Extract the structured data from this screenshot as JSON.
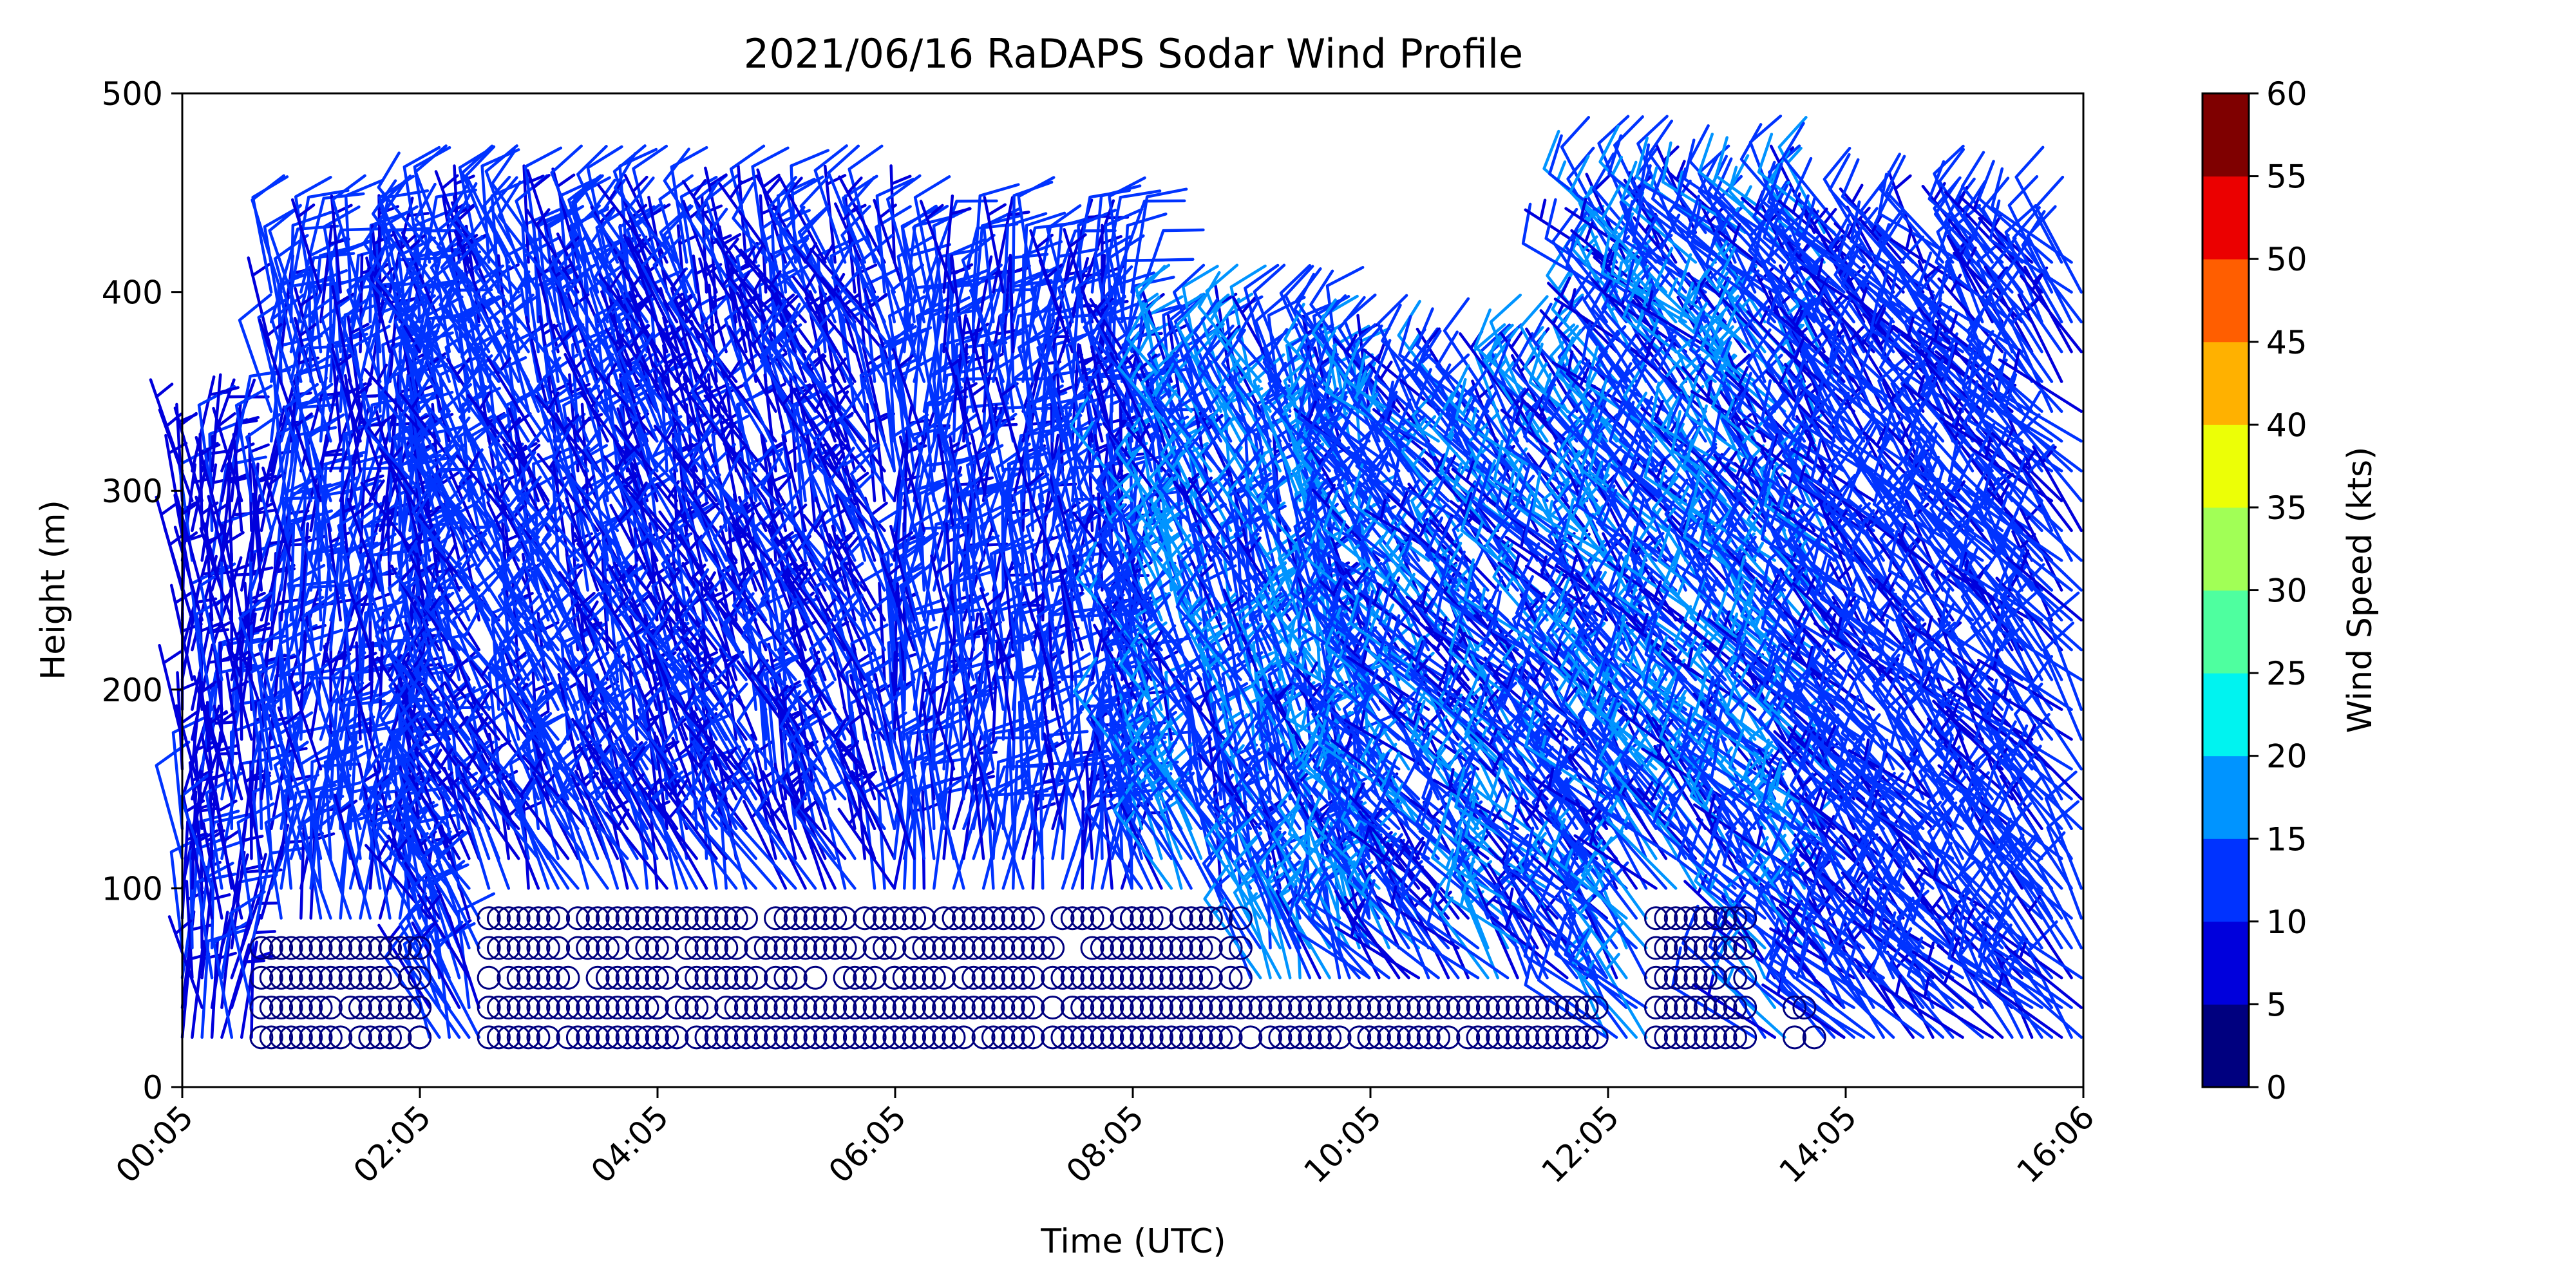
{
  "chart_data": {
    "type": "wind-barb",
    "title": "2021/06/16 RaDAPS Sodar Wind Profile",
    "xlabel": "Time (UTC)",
    "ylabel": "Height (m)",
    "x_ticks": [
      "00:05",
      "02:05",
      "04:05",
      "06:05",
      "08:05",
      "10:05",
      "12:05",
      "14:05",
      "16:06"
    ],
    "x_range_minutes": [
      5,
      966
    ],
    "ylim": [
      0,
      500
    ],
    "y_ticks": [
      0,
      100,
      200,
      300,
      400,
      500
    ],
    "heights_m": [
      25,
      40,
      55,
      70,
      85,
      100,
      115,
      130,
      145,
      160,
      175,
      190,
      205,
      220,
      235,
      250,
      265,
      280,
      295,
      310,
      325,
      340,
      355,
      370,
      385,
      400,
      415,
      430
    ],
    "calm_symbol": "circle",
    "colorbar": {
      "label": "Wind Speed (kts)",
      "ticks": [
        0,
        5,
        10,
        15,
        20,
        25,
        30,
        35,
        40,
        45,
        50,
        55,
        60
      ],
      "colors": [
        "#00007f",
        "#0000dc",
        "#0033ff",
        "#0094ff",
        "#00f3f0",
        "#4eff9f",
        "#a1ff56",
        "#ecff06",
        "#ffb100",
        "#ff5e00",
        "#eb0000",
        "#7f0000"
      ]
    },
    "profiles_summary": [
      {
        "time": "00:05-00:45",
        "top_height_m": 320,
        "typical_speed_kts": [
          5,
          12
        ],
        "direction": "northerly"
      },
      {
        "time": "00:50-02:05",
        "top_height_m": 400,
        "typical_speed_kts": [
          8,
          15
        ],
        "direction": "northerly"
      },
      {
        "time": "02:05-04:05",
        "top_height_m": 415,
        "typical_speed_kts": [
          8,
          14
        ],
        "direction": "north-northwesterly"
      },
      {
        "time": "04:05-06:05",
        "top_height_m": 425,
        "typical_speed_kts": [
          7,
          13
        ],
        "direction": "north-northwesterly"
      },
      {
        "time": "06:05-08:05",
        "top_height_m": 405,
        "typical_speed_kts": [
          8,
          15
        ],
        "direction": "northerly"
      },
      {
        "time": "08:05-10:05",
        "top_height_m": 355,
        "typical_speed_kts": [
          9,
          18
        ],
        "direction": "north-northwesterly"
      },
      {
        "time": "10:05-12:05",
        "top_height_m": 340,
        "typical_speed_kts": [
          8,
          17
        ],
        "direction": "northwesterly"
      },
      {
        "time": "12:05-14:05",
        "top_height_m": 435,
        "typical_speed_kts": [
          8,
          18
        ],
        "direction": "northwesterly"
      },
      {
        "time": "14:05-16:06",
        "top_height_m": 425,
        "typical_speed_kts": [
          8,
          15
        ],
        "direction": "northwesterly"
      }
    ],
    "calm_regions": [
      {
        "time": "00:45-02:05",
        "max_height_m": 70
      },
      {
        "time": "02:40-06:05",
        "max_height_m": 85
      },
      {
        "time": "06:05-09:00",
        "max_height_m": 85
      },
      {
        "time": "09:00-12:00",
        "max_height_m": 40
      },
      {
        "time": "12:30-13:15",
        "max_height_m": 85
      },
      {
        "time": "13:40-13:50",
        "max_height_m": 40
      }
    ],
    "grid": false,
    "legend": "colorbar-right"
  }
}
